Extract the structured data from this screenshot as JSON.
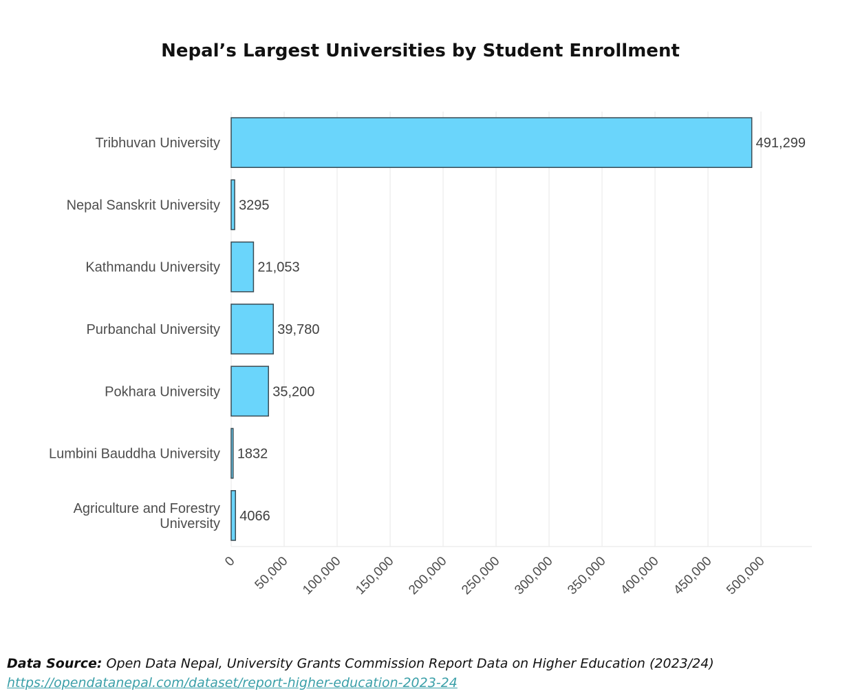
{
  "chart_data": {
    "type": "bar",
    "orientation": "horizontal",
    "title": "Nepal’s Largest Universities by Student Enrollment",
    "categories": [
      "Tribhuvan University",
      "Nepal Sanskrit University",
      "Kathmandu University",
      "Purbanchal University",
      "Pokhara University",
      "Lumbini Bauddha University",
      "Agriculture and Forestry University"
    ],
    "category_lines": [
      [
        "Tribhuvan University"
      ],
      [
        "Nepal Sanskrit University"
      ],
      [
        "Kathmandu University"
      ],
      [
        "Purbanchal University"
      ],
      [
        "Pokhara University"
      ],
      [
        "Lumbini Bauddha University"
      ],
      [
        "Agriculture and Forestry",
        "University"
      ]
    ],
    "values": [
      491299,
      3295,
      21053,
      39780,
      35200,
      1832,
      4066
    ],
    "value_labels": [
      "491,299",
      "3295",
      "21,053",
      "39,780",
      "35,200",
      "1832",
      "4066"
    ],
    "xlim": [
      0,
      548000
    ],
    "xticks": [
      0,
      50000,
      100000,
      150000,
      200000,
      250000,
      300000,
      350000,
      400000,
      450000,
      500000
    ],
    "xtick_labels": [
      "0",
      "50,000",
      "100,000",
      "150,000",
      "200,000",
      "250,000",
      "300,000",
      "350,000",
      "400,000",
      "450,000",
      "500,000"
    ],
    "xlabel": "",
    "ylabel": "",
    "grid": "vertical",
    "bar_color": "#6ad5fb"
  },
  "source": {
    "label": "Data Source:",
    "text": "Open Data Nepal, University Grants Commission Report Data on Higher Education (2023/24)",
    "url": "https://opendatanepal.com/dataset/report-higher-education-2023-24"
  }
}
